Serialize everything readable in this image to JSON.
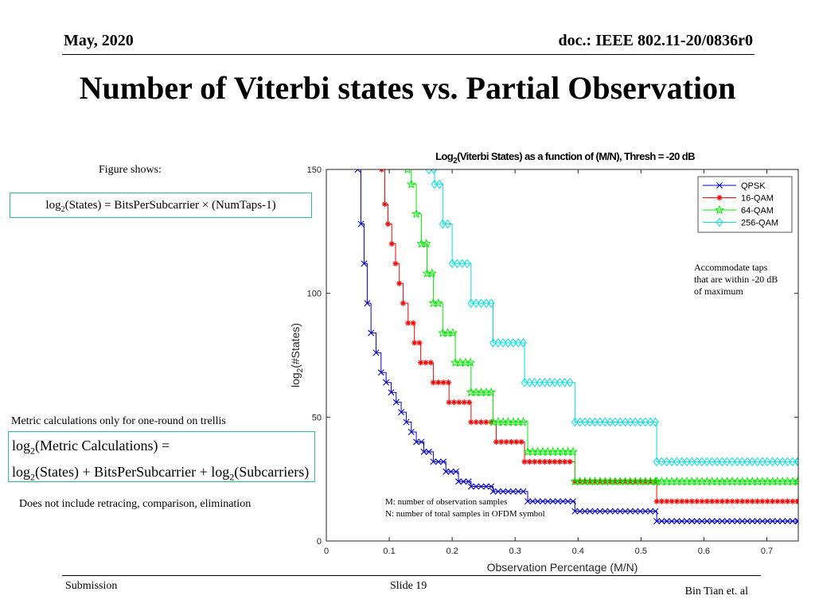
{
  "header": {
    "date": "May, 2020",
    "doc_id": "doc.: IEEE 802.11-20/0836r0"
  },
  "slide_title": "Number of Viterbi states vs. Partial Observation",
  "left_notes": {
    "figure_shows": "Figure shows:",
    "formula1": {
      "lhs_log": "log",
      "lhs_sub": "2",
      "lhs_rest": "(States) = BitsPerSubcarrier × (NumTaps-1)"
    },
    "metric_caption": "Metric calculations only for one-round on trellis",
    "formula2": {
      "line1_log": "log",
      "line1_sub": "2",
      "line1_rest": "(Metric Calculations) =",
      "line2_log_a": "log",
      "line2_sub_a": "2",
      "line2_mid": "(States) + BitsPerSubcarrier + ",
      "line2_log_b": "log",
      "line2_sub_b": "2",
      "line2_end": "(Subcarriers)"
    },
    "does_not_include": "Does not include retracing, comparison, elimination"
  },
  "footer": {
    "left": "Submission",
    "center": "Slide 19",
    "right": "Bin Tian et. al"
  },
  "chart_data": {
    "type": "line",
    "title": "Log2(Viterbi States) as a function of (M/N), Thresh = -20 dB",
    "title_parts": {
      "pre": "Log",
      "sub": "2",
      "post": "(Viterbi States) as a function of (M/N), Thresh = -20 dB"
    },
    "xlabel": "Observation Percentage (M/N)",
    "ylabel_parts": {
      "pre": "log",
      "sub": "2",
      "post": "(#States)"
    },
    "xlim": [
      0,
      0.75
    ],
    "ylim": [
      0,
      150
    ],
    "xticks": [
      0,
      0.1,
      0.2,
      0.3,
      0.4,
      0.5,
      0.6,
      0.7
    ],
    "xtick_labels": [
      "0",
      "0.1",
      "0.2",
      "0.3",
      "0.4",
      "0.5",
      "0.6",
      "0.7"
    ],
    "yticks": [
      0,
      50,
      100,
      150
    ],
    "ytick_labels": [
      "0",
      "50",
      "100",
      "150"
    ],
    "grid": false,
    "legend_position": "top-right",
    "annotations": {
      "accommodate": [
        "Accommodate taps",
        "that are within -20 dB",
        "of maximum"
      ],
      "mn_def": [
        "M: number of observation samples",
        "N: number of total samples in OFDM symbol"
      ]
    },
    "series": [
      {
        "name": "QPSK",
        "bits": 2,
        "color": "#0000cc",
        "marker": "x",
        "x": [
          0.05,
          0.055,
          0.06,
          0.065,
          0.071,
          0.079,
          0.087,
          0.095,
          0.103,
          0.111,
          0.119,
          0.127,
          0.135,
          0.143,
          0.155,
          0.17,
          0.19,
          0.21,
          0.23,
          0.265,
          0.32,
          0.395,
          0.525,
          0.75
        ],
        "y": [
          150,
          128,
          112,
          96,
          84,
          76,
          68,
          64,
          60,
          56,
          52,
          48,
          44,
          40,
          36,
          32,
          28,
          24,
          22,
          20,
          16,
          12,
          8,
          8
        ]
      },
      {
        "name": "16-QAM",
        "bits": 4,
        "color": "#ff0000",
        "marker": "*",
        "x": [
          0.088,
          0.093,
          0.098,
          0.104,
          0.11,
          0.116,
          0.122,
          0.13,
          0.14,
          0.15,
          0.17,
          0.195,
          0.23,
          0.27,
          0.315,
          0.395,
          0.525,
          0.75
        ],
        "y": [
          150,
          136,
          128,
          120,
          112,
          104,
          96,
          88,
          80,
          72,
          64,
          56,
          48,
          40,
          32,
          24,
          16,
          16
        ]
      },
      {
        "name": "64-QAM",
        "bits": 6,
        "color": "#00ee00",
        "marker": "star",
        "x": [
          0.129,
          0.135,
          0.143,
          0.151,
          0.16,
          0.17,
          0.185,
          0.205,
          0.23,
          0.265,
          0.32,
          0.395,
          0.525,
          0.75
        ],
        "y": [
          150,
          144,
          132,
          120,
          108,
          96,
          84,
          72,
          60,
          48,
          36,
          24,
          24,
          24
        ]
      },
      {
        "name": "256-QAM",
        "bits": 8,
        "color": "#00e0e0",
        "marker": "diamond",
        "x": [
          0.163,
          0.172,
          0.185,
          0.2,
          0.23,
          0.265,
          0.315,
          0.395,
          0.525,
          0.75
        ],
        "y": [
          150,
          144,
          128,
          112,
          96,
          80,
          64,
          48,
          32,
          32
        ]
      }
    ]
  }
}
